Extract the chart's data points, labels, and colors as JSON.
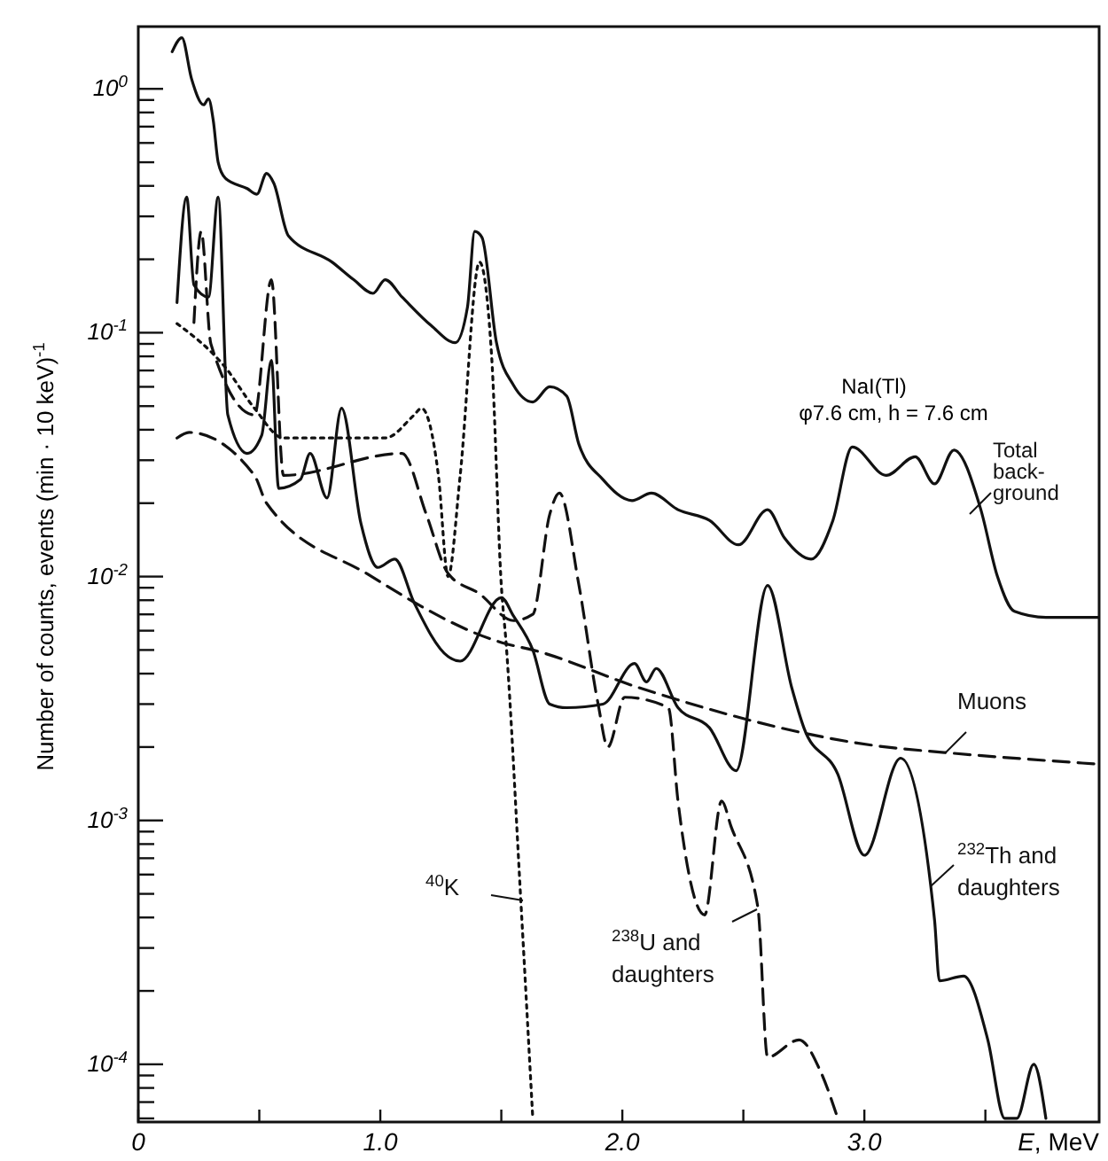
{
  "chart_data": {
    "type": "line",
    "xlabel": "E, MeV",
    "ylabel": "Number of counts, events (min · 10 keV)$^{-1}$",
    "log": "y",
    "xlim": [
      0,
      3.97
    ],
    "ylim": [
      5.8e-05,
      1.8
    ],
    "xticks": [
      {
        "value": 0,
        "label": "0"
      },
      {
        "value": 0.5,
        "label": null
      },
      {
        "value": 1,
        "label": "1.0"
      },
      {
        "value": 1.5,
        "label": null
      },
      {
        "value": 2,
        "label": "2.0"
      },
      {
        "value": 2.5,
        "label": null
      },
      {
        "value": 3,
        "label": "3.0"
      },
      {
        "value": 3.5,
        "label": null
      }
    ],
    "yticks": [
      {
        "value": 6e-05,
        "label": null
      },
      {
        "value": 7e-05,
        "label": null
      },
      {
        "value": 8e-05,
        "label": null
      },
      {
        "value": 9e-05,
        "label": null
      },
      {
        "value": 0.0001,
        "label": "10$^{-4}$"
      },
      {
        "value": 0.0002,
        "label": null
      },
      {
        "value": 0.0003,
        "label": null
      },
      {
        "value": 0.0004,
        "label": null
      },
      {
        "value": 0.0005,
        "label": null
      },
      {
        "value": 0.0006,
        "label": null
      },
      {
        "value": 0.0007,
        "label": null
      },
      {
        "value": 0.0008,
        "label": null
      },
      {
        "value": 0.0009,
        "label": null
      },
      {
        "value": 0.001,
        "label": "10$^{-3}$"
      },
      {
        "value": 0.002,
        "label": null
      },
      {
        "value": 0.003,
        "label": null
      },
      {
        "value": 0.004,
        "label": null
      },
      {
        "value": 0.005,
        "label": null
      },
      {
        "value": 0.006,
        "label": null
      },
      {
        "value": 0.007,
        "label": null
      },
      {
        "value": 0.008,
        "label": null
      },
      {
        "value": 0.009,
        "label": null
      },
      {
        "value": 0.01,
        "label": "10$^{-2}$"
      },
      {
        "value": 0.02,
        "label": null
      },
      {
        "value": 0.03,
        "label": null
      },
      {
        "value": 0.04,
        "label": null
      },
      {
        "value": 0.05,
        "label": null
      },
      {
        "value": 0.06,
        "label": null
      },
      {
        "value": 0.07,
        "label": null
      },
      {
        "value": 0.08,
        "label": null
      },
      {
        "value": 0.09,
        "label": null
      },
      {
        "value": 0.1,
        "label": "10$^{-1}$"
      },
      {
        "value": 0.2,
        "label": null
      },
      {
        "value": 0.3,
        "label": null
      },
      {
        "value": 0.4,
        "label": null
      },
      {
        "value": 0.5,
        "label": null
      },
      {
        "value": 0.6,
        "label": null
      },
      {
        "value": 0.7,
        "label": null
      },
      {
        "value": 0.8,
        "label": null
      },
      {
        "value": 0.9,
        "label": null
      },
      {
        "value": 1,
        "label": "10$^{0}$"
      }
    ],
    "annotations": [
      "NaI(Tl)",
      "φ7.6 cm, h = 7.6 cm"
    ],
    "series": [
      {
        "name": "Total\nback-\nground",
        "color": "#111111",
        "line_style": "solid",
        "x": [
          0.14,
          0.18,
          0.22,
          0.27,
          0.29,
          0.31,
          0.33,
          0.36,
          0.45,
          0.49,
          0.53,
          0.56,
          0.62,
          0.8,
          0.89,
          0.97,
          1.02,
          1.09,
          1.21,
          1.31,
          1.36,
          1.39,
          1.42,
          1.48,
          1.55,
          1.63,
          1.7,
          1.77,
          1.82,
          1.92,
          2.04,
          2.12,
          2.23,
          2.36,
          2.48,
          2.6,
          2.67,
          2.78,
          2.87,
          2.95,
          3.09,
          3.21,
          3.29,
          3.37,
          3.48,
          3.55,
          3.62,
          3.75,
          3.97
        ],
        "values": [
          1.42,
          1.62,
          1.1,
          0.86,
          0.91,
          0.74,
          0.5,
          0.43,
          0.39,
          0.37,
          0.45,
          0.41,
          0.25,
          0.195,
          0.165,
          0.145,
          0.165,
          0.14,
          0.107,
          0.091,
          0.127,
          0.26,
          0.246,
          0.091,
          0.061,
          0.052,
          0.06,
          0.055,
          0.035,
          0.025,
          0.0205,
          0.022,
          0.0188,
          0.017,
          0.0135,
          0.0188,
          0.0144,
          0.0118,
          0.017,
          0.034,
          0.026,
          0.031,
          0.024,
          0.033,
          0.019,
          0.01,
          0.0072,
          0.0068,
          0.0068
        ]
      },
      {
        "name": "Muons",
        "color": "#111111",
        "line_style": "dashed",
        "x": [
          0.16,
          0.21,
          0.48,
          0.53,
          0.95,
          1.52,
          1.63,
          2.07,
          3.09,
          3.33,
          3.97
        ],
        "values": [
          0.037,
          0.039,
          0.026,
          0.02,
          0.0102,
          0.0053,
          0.005,
          0.0035,
          0.002,
          0.0019,
          0.0017
        ]
      },
      {
        "name": "$^{40}$K",
        "color": "#111111",
        "line_style": "dotted",
        "x": [
          0.16,
          0.36,
          0.48,
          0.6,
          1.02,
          1.14,
          1.17,
          1.24,
          1.28,
          1.33,
          1.41,
          1.46,
          1.5,
          1.52,
          1.58,
          1.63
        ],
        "values": [
          0.109,
          0.072,
          0.049,
          0.037,
          0.037,
          0.046,
          0.049,
          0.026,
          0.01,
          0.026,
          0.195,
          0.08,
          0.0092,
          0.0053,
          0.00048,
          6e-05
        ]
      },
      {
        "name": "$^{238}$U and\ndaughters",
        "color": "#111111",
        "line_style": "dashed",
        "x": [
          0.23,
          0.26,
          0.3,
          0.48,
          0.55,
          0.6,
          1.09,
          1.19,
          1.28,
          1.41,
          1.55,
          1.63,
          1.7,
          1.74,
          1.82,
          1.9,
          1.94,
          2.01,
          2.19,
          2.23,
          2.34,
          2.41,
          2.45,
          2.56,
          2.6,
          2.73,
          2.82,
          2.89
        ],
        "values": [
          0.11,
          0.26,
          0.09,
          0.046,
          0.165,
          0.026,
          0.032,
          0.018,
          0.0103,
          0.0085,
          0.0066,
          0.007,
          0.018,
          0.022,
          0.0093,
          0.003,
          0.002,
          0.0032,
          0.0029,
          0.0012,
          0.00041,
          0.0012,
          0.00094,
          0.00044,
          0.000107,
          0.000126,
          9.3e-05,
          6e-05
        ]
      },
      {
        "name": "$^{232}$Th and\ndaughters",
        "color": "#111111",
        "line_style": "solid",
        "x": [
          0.16,
          0.2,
          0.23,
          0.29,
          0.33,
          0.37,
          0.45,
          0.51,
          0.55,
          0.58,
          0.67,
          0.71,
          0.78,
          0.84,
          0.92,
          0.99,
          1.06,
          1.14,
          1.28,
          1.33,
          1.5,
          1.55,
          1.63,
          1.7,
          1.77,
          1.92,
          2.05,
          2.1,
          2.14,
          2.23,
          2.36,
          2.47,
          2.6,
          2.7,
          2.75,
          2.89,
          3.0,
          3.15,
          3.29,
          3.31,
          3.41,
          3.51,
          3.58,
          3.63,
          3.7,
          3.75
        ],
        "values": [
          0.133,
          0.36,
          0.157,
          0.14,
          0.36,
          0.046,
          0.032,
          0.038,
          0.077,
          0.023,
          0.025,
          0.032,
          0.021,
          0.049,
          0.0165,
          0.0109,
          0.0118,
          0.0078,
          0.0047,
          0.0045,
          0.0082,
          0.0069,
          0.005,
          0.003,
          0.0029,
          0.003,
          0.0044,
          0.0037,
          0.0042,
          0.0029,
          0.0024,
          0.0016,
          0.0092,
          0.0035,
          0.0024,
          0.00155,
          0.00072,
          0.0018,
          0.00039,
          0.00022,
          0.00023,
          0.000126,
          6e-05,
          6e-05,
          0.0001,
          6e-05
        ]
      }
    ]
  }
}
